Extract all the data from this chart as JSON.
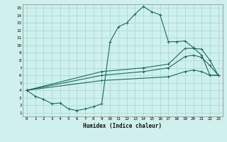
{
  "xlabel": "Humidex (Indice chaleur)",
  "ylabel": "",
  "background_color": "#cff0ec",
  "grid_color": "#a0d8d4",
  "line_color": "#1e6b5e",
  "xlim": [
    -0.5,
    23.5
  ],
  "ylim": [
    0.5,
    15.5
  ],
  "xticks": [
    0,
    1,
    2,
    3,
    4,
    5,
    6,
    7,
    8,
    9,
    10,
    11,
    12,
    13,
    14,
    15,
    16,
    17,
    18,
    19,
    20,
    21,
    22,
    23
  ],
  "yticks": [
    1,
    2,
    3,
    4,
    5,
    6,
    7,
    8,
    9,
    10,
    11,
    12,
    13,
    14,
    15
  ],
  "series": [
    {
      "x": [
        0,
        1,
        2,
        3,
        4,
        5,
        6,
        7,
        8,
        9,
        10,
        11,
        12,
        13,
        14,
        15,
        16,
        17,
        18,
        19,
        20,
        21,
        22,
        23
      ],
      "y": [
        4.0,
        3.2,
        2.8,
        2.2,
        2.3,
        1.5,
        1.3,
        1.5,
        1.8,
        2.2,
        10.5,
        12.5,
        13.0,
        14.2,
        15.2,
        14.5,
        14.1,
        10.5,
        10.5,
        10.6,
        9.7,
        8.7,
        6.0,
        6.0
      ]
    },
    {
      "x": [
        0,
        9,
        14,
        17,
        19,
        20,
        21,
        22,
        23
      ],
      "y": [
        4.0,
        6.5,
        7.0,
        7.5,
        9.6,
        9.6,
        9.5,
        8.0,
        6.0
      ]
    },
    {
      "x": [
        0,
        9,
        14,
        17,
        19,
        20,
        21,
        22,
        23
      ],
      "y": [
        4.0,
        6.0,
        6.5,
        7.0,
        8.5,
        8.7,
        8.4,
        7.3,
        6.0
      ]
    },
    {
      "x": [
        0,
        9,
        17,
        19,
        20,
        21,
        22,
        23
      ],
      "y": [
        4.0,
        5.3,
        5.8,
        6.5,
        6.7,
        6.5,
        6.0,
        6.0
      ]
    }
  ]
}
